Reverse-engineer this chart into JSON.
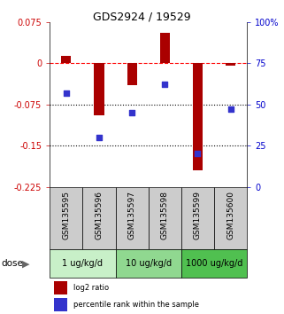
{
  "title": "GDS2924 / 19529",
  "samples": [
    "GSM135595",
    "GSM135596",
    "GSM135597",
    "GSM135598",
    "GSM135599",
    "GSM135600"
  ],
  "log2_ratio": [
    0.013,
    -0.095,
    -0.04,
    0.055,
    -0.195,
    -0.005
  ],
  "percentile_rank": [
    57,
    30,
    45,
    62,
    20,
    47
  ],
  "ylim_left": [
    -0.225,
    0.075
  ],
  "ylim_right": [
    0,
    100
  ],
  "yticks_left": [
    0.075,
    0,
    -0.075,
    -0.15,
    -0.225
  ],
  "yticks_right": [
    100,
    75,
    50,
    25,
    0
  ],
  "ytick_labels_left": [
    "0.075",
    "0",
    "-0.075",
    "-0.15",
    "-0.225"
  ],
  "ytick_labels_right": [
    "100%",
    "75",
    "50",
    "25",
    "0"
  ],
  "hlines": [
    0,
    -0.075,
    -0.15
  ],
  "hline_styles": [
    "dashed",
    "dotted",
    "dotted"
  ],
  "hline_colors": [
    "red",
    "black",
    "black"
  ],
  "dose_groups": [
    {
      "label": "1 ug/kg/d",
      "samples": [
        0,
        1
      ],
      "color": "#c8f0c8"
    },
    {
      "label": "10 ug/kg/d",
      "samples": [
        2,
        3
      ],
      "color": "#90d890"
    },
    {
      "label": "1000 ug/kg/d",
      "samples": [
        4,
        5
      ],
      "color": "#50c050"
    }
  ],
  "bar_color": "#aa0000",
  "dot_color": "#3333cc",
  "bar_width": 0.3,
  "dot_size": 18,
  "legend_red": "log2 ratio",
  "legend_blue": "percentile rank within the sample",
  "sample_bg_color": "#cccccc",
  "left_axis_color": "#cc0000",
  "right_axis_color": "#0000cc",
  "tick_fontsize": 7,
  "title_fontsize": 9,
  "label_fontsize": 6.5,
  "dose_fontsize": 7,
  "legend_fontsize": 6
}
